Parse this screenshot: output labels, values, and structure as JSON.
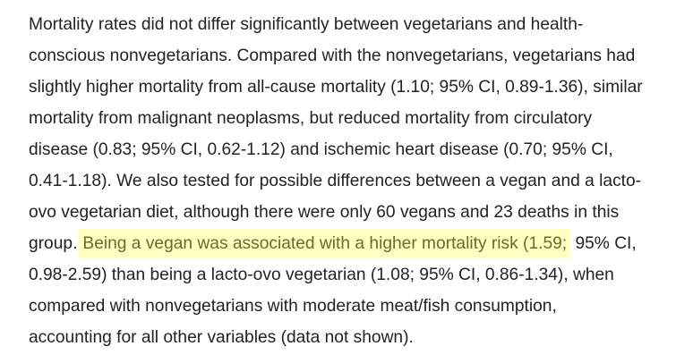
{
  "paragraph": {
    "lines": [
      "Mortality rates did not differ significantly between vegetarians and health-",
      "conscious nonvegetarians. Compared with the nonvegetarians, vegetarians had",
      "slightly higher mortality from all-cause mortality (1.10; 95% CI, 0.89-1.36), similar",
      "mortality from malignant neoplasms, but reduced mortality from circulatory",
      "disease (0.83; 95% CI, 0.62-1.12) and ischemic heart disease (0.70; 95% CI,",
      "0.41-1.18). We also tested for possible differences between a vegan and a lacto-",
      "ovo vegetarian diet, although there were only 60 vegans and 23 deaths in this"
    ],
    "highlight_line": {
      "before": "group.",
      "highlighted": "Being a vegan was associated with a higher mortality risk (1.59;",
      "after": " 95% CI,"
    },
    "lines_after": [
      "0.98-2.59) than being a lacto-ovo vegetarian (1.08; 95% CI, 0.86-1.34), when",
      "compared with nonvegetarians with moderate meat/fish consumption,",
      "accounting for all other variables (data not shown)."
    ],
    "highlight_color": "#ffffc0",
    "highlight_text_color": "#6b6b2a"
  }
}
